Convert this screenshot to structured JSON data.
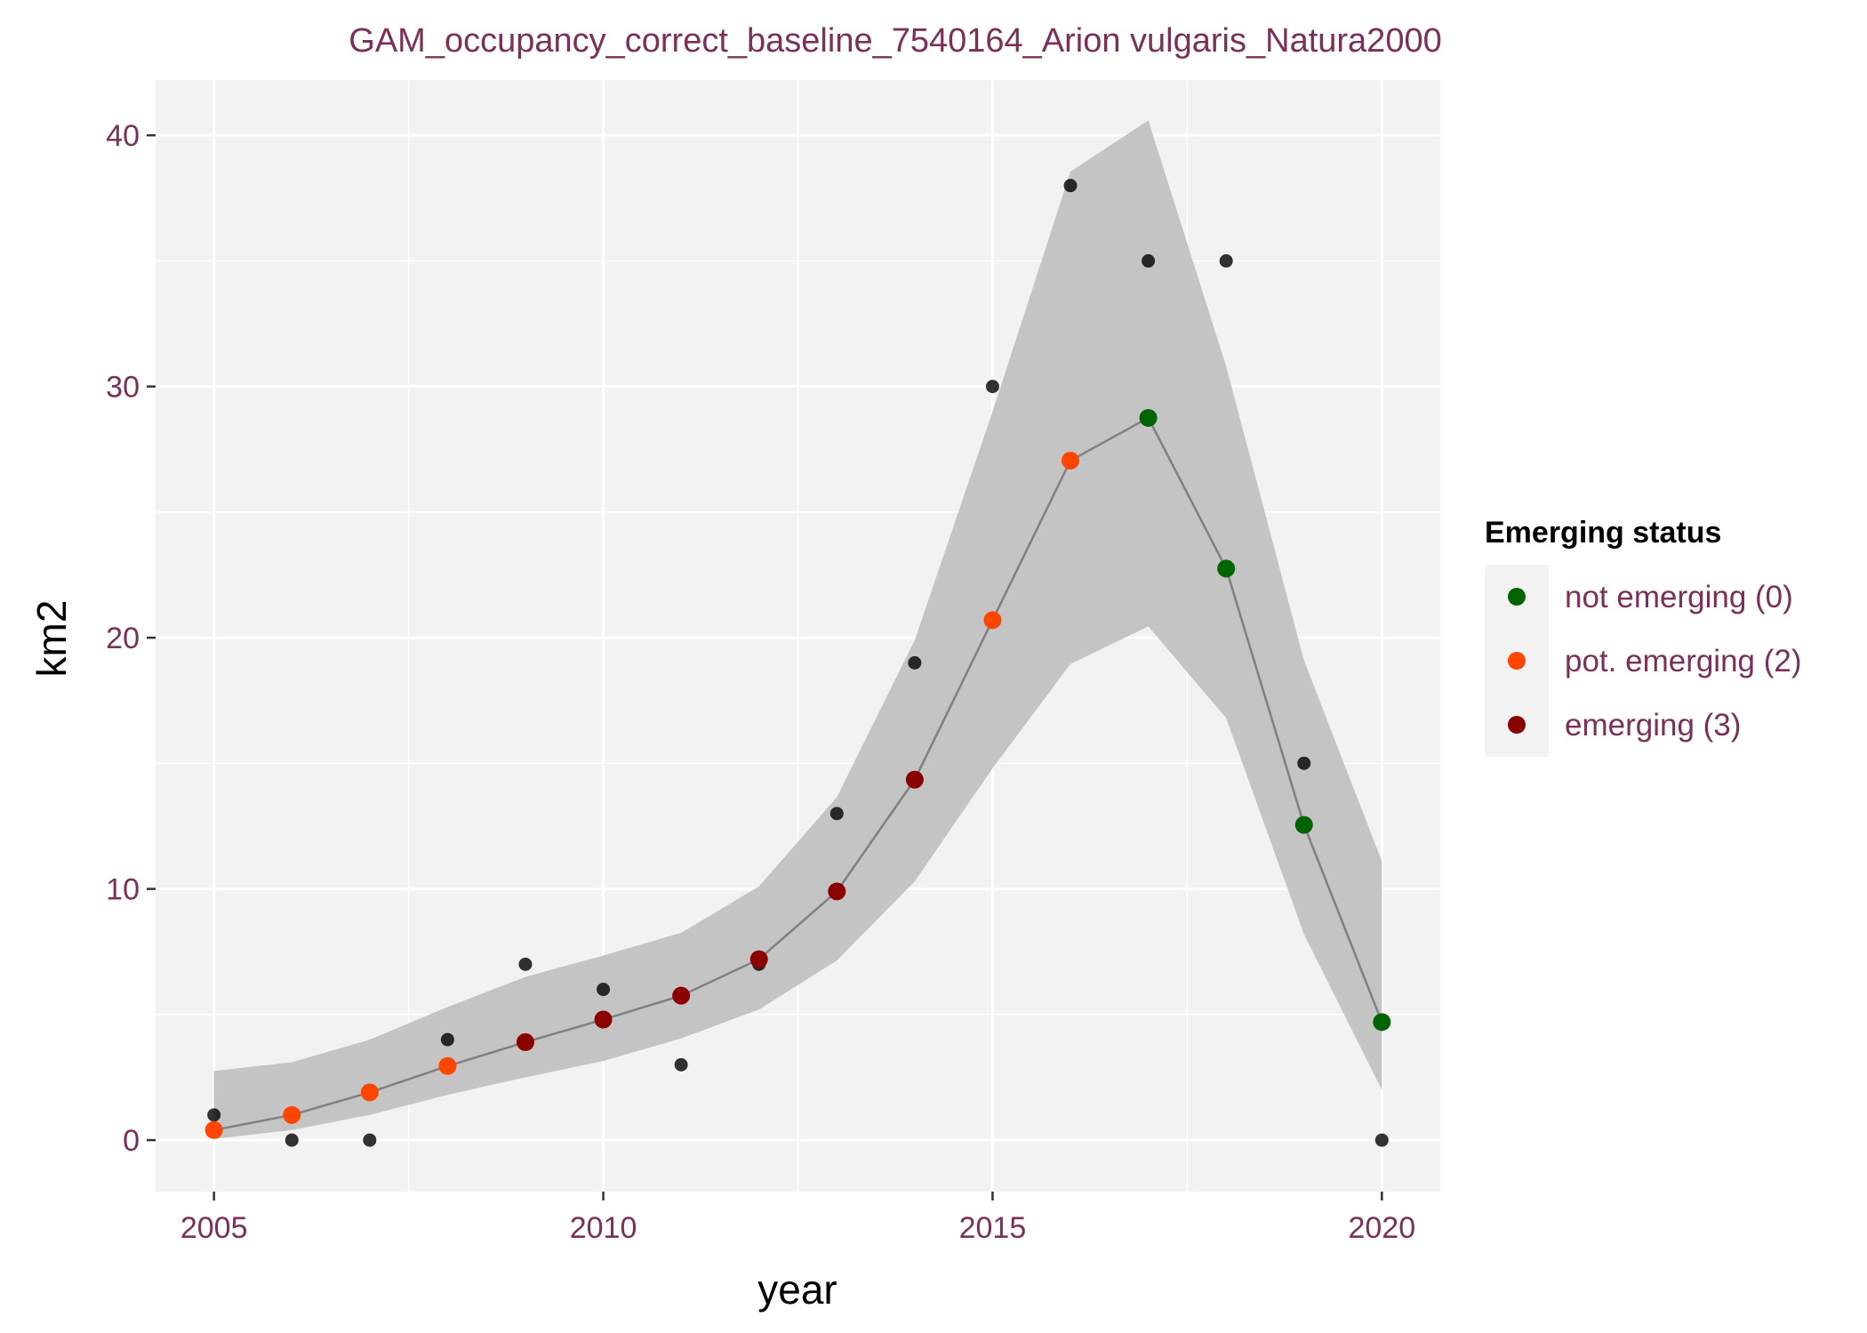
{
  "chart_data": {
    "type": "line",
    "title": "GAM_occupancy_correct_baseline_7540164_Arion vulgaris_Natura2000",
    "xlabel": "year",
    "ylabel": "km2",
    "xlim": [
      2004.25,
      2020.75
    ],
    "ylim": [
      -2.05,
      42.2
    ],
    "x_ticks": [
      2005,
      2010,
      2015,
      2020
    ],
    "y_ticks": [
      0,
      10,
      20,
      30,
      40
    ],
    "grid": true,
    "legend": {
      "title": "Emerging status",
      "placement": "right",
      "items": [
        {
          "key": "0",
          "label": "not emerging (0)",
          "color": "#006400"
        },
        {
          "key": "2",
          "label": "pot. emerging (2)",
          "color": "#ff4500"
        },
        {
          "key": "3",
          "label": "emerging (3)",
          "color": "#8b0000"
        }
      ]
    },
    "colors": {
      "panel_background": "#f2f2f2",
      "grid_line": "#ffffff",
      "ribbon": "#c4c4c4",
      "fit_line": "#808080",
      "observed_point": "#000000",
      "tick_mark": "#333333"
    },
    "observed": {
      "x": [
        2005,
        2006,
        2007,
        2008,
        2009,
        2010,
        2011,
        2012,
        2013,
        2014,
        2015,
        2016,
        2017,
        2018,
        2019,
        2020
      ],
      "y": [
        1,
        0,
        0,
        4,
        7,
        6,
        3,
        7,
        13,
        19,
        30,
        38,
        35,
        35,
        15,
        0
      ]
    },
    "fit": {
      "x": [
        2005,
        2006,
        2007,
        2008,
        2009,
        2010,
        2011,
        2012,
        2013,
        2014,
        2015,
        2016,
        2017,
        2018,
        2019,
        2020
      ],
      "y": [
        0.4,
        1.0,
        1.9,
        2.95,
        3.9,
        4.8,
        5.75,
        7.2,
        9.9,
        14.35,
        20.7,
        27.05,
        28.75,
        22.75,
        12.55,
        4.7
      ],
      "lower": [
        0.05,
        0.4,
        1.0,
        1.8,
        2.5,
        3.15,
        4.05,
        5.2,
        7.15,
        10.3,
        14.8,
        18.95,
        20.45,
        16.8,
        8.2,
        2.0
      ],
      "upper": [
        2.75,
        3.1,
        4.0,
        5.3,
        6.5,
        7.35,
        8.25,
        10.1,
        13.65,
        19.9,
        29.0,
        38.55,
        40.6,
        30.8,
        19.1,
        11.1
      ],
      "status": [
        "2",
        "2",
        "2",
        "2",
        "3",
        "3",
        "3",
        "3",
        "3",
        "3",
        "2",
        "2",
        "0",
        "0",
        "0",
        "0"
      ]
    }
  }
}
